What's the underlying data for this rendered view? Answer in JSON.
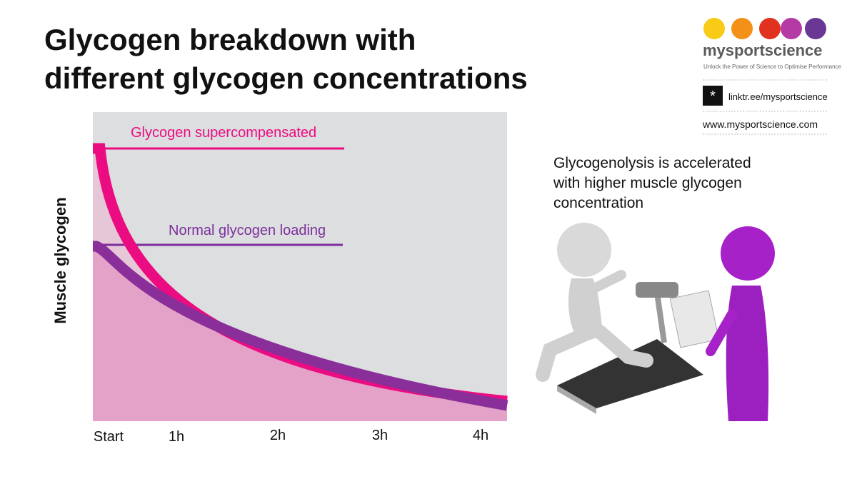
{
  "header": {
    "title": [
      "Glycogen breakdown with",
      "different glycogen concentrations"
    ]
  },
  "chart": {
    "y_label": "Muscle glycogen",
    "x_labels": [
      "Start",
      "1h",
      "2h",
      "3h",
      "4h"
    ],
    "curves": [
      {
        "label": "Glycogen supercompensated",
        "color": "#ec0c82"
      },
      {
        "label": "Normal glycogen loading",
        "color": "#7d2f9b"
      }
    ]
  },
  "caption": [
    "Glycogenolysis is accelerated",
    "with higher muscle glycogen",
    "concentration"
  ],
  "brand": {
    "name": "mysportscience",
    "tagline": "Unlock the Power of Science to Optimise Performance",
    "link": "linktr.ee/mysportscience",
    "website": "www.mysportscience.com"
  }
}
